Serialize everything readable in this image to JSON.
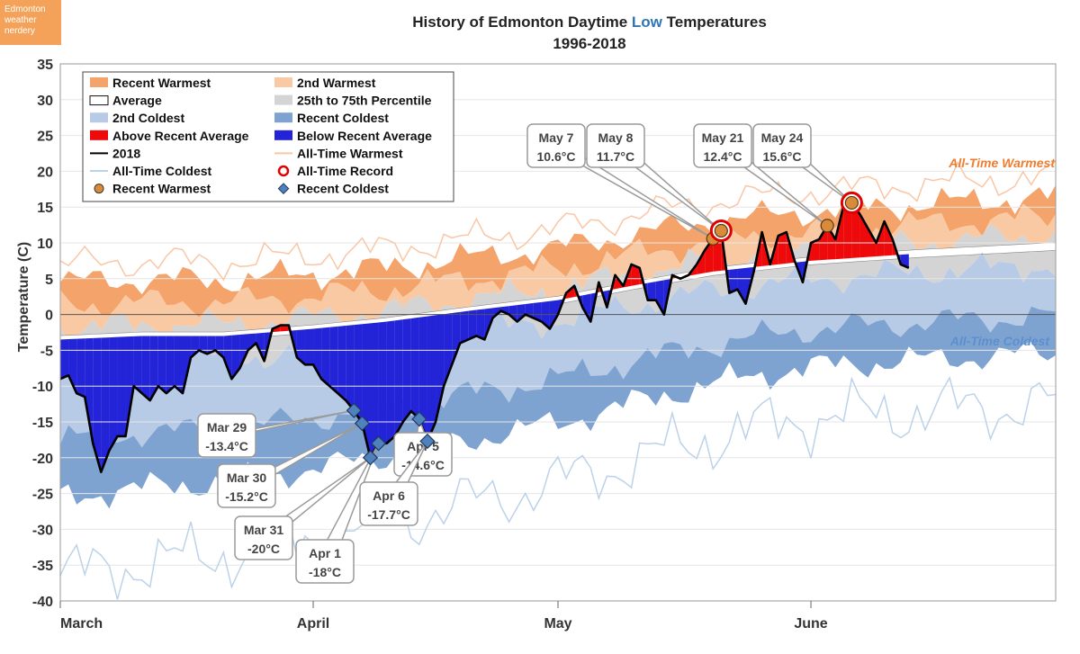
{
  "brand": {
    "line1": "Edmonton",
    "line2": "weather",
    "line3": "nerdery"
  },
  "chart_data": {
    "type": "area",
    "title_part1": "History of Edmonton Daytime ",
    "title_highlight": "Low",
    "title_part2": " Temperatures",
    "subtitle": "1996-2018",
    "ylabel": "Temperature (C)",
    "ylim": [
      -40,
      35
    ],
    "yticks": [
      35,
      30,
      25,
      20,
      15,
      10,
      5,
      0,
      -5,
      -10,
      -15,
      -20,
      -25,
      -30,
      -35,
      -40
    ],
    "xlim": [
      0,
      122
    ],
    "month_ticks": [
      {
        "label": "March",
        "day": 0
      },
      {
        "label": "April",
        "day": 31
      },
      {
        "label": "May",
        "day": 61
      },
      {
        "label": "June",
        "day": 92
      }
    ],
    "grid": true,
    "colors": {
      "warmest": "#f4a46a",
      "second_warmest": "#f9c9a3",
      "percentile": "#d4d4d4",
      "second_coldest": "#b7cbe6",
      "recent_coldest": "#7fa3d0",
      "above": "#ee0a0a",
      "below": "#2323d8",
      "line": "#000000",
      "alltime_warm": "#f9c6a6",
      "alltime_cold": "#bcd2ea",
      "highlight": "#2e75b6",
      "warm_label": "#ed7d31",
      "cold_label": "#5b8fcf",
      "record": "#e00000",
      "dot": "#d98b3a",
      "diamond": "#4f81bd"
    },
    "legend": [
      {
        "label": "Recent Warmest",
        "kind": "fill",
        "color": "#f4a46a"
      },
      {
        "label": "2nd Warmest",
        "kind": "fill",
        "color": "#f9c9a3"
      },
      {
        "label": "Average",
        "kind": "box",
        "color": "#ffffff"
      },
      {
        "label": "25th to 75th Percentile",
        "kind": "fill",
        "color": "#d4d4d4"
      },
      {
        "label": "2nd Coldest",
        "kind": "fill",
        "color": "#b7cbe6"
      },
      {
        "label": "Recent Coldest",
        "kind": "fill",
        "color": "#7fa3d0"
      },
      {
        "label": "Above Recent Average",
        "kind": "fill",
        "color": "#ee0a0a"
      },
      {
        "label": "Below Recent Average",
        "kind": "fill",
        "color": "#2323d8"
      },
      {
        "label": "2018",
        "kind": "line",
        "color": "#000000"
      },
      {
        "label": "All-Time Warmest",
        "kind": "line",
        "color": "#f9c6a6"
      },
      {
        "label": "All-Time Coldest",
        "kind": "line",
        "color": "#bcd2ea"
      },
      {
        "label": "All-Time Record",
        "kind": "ring",
        "color": "#e00000"
      },
      {
        "label": "Recent Warmest",
        "kind": "dot",
        "color": "#d98b3a"
      },
      {
        "label": "Recent Coldest",
        "kind": "diamond",
        "color": "#4f81bd"
      }
    ],
    "series_labels": {
      "warmest": "All-Time Warmest",
      "coldest": "All-Time Coldest"
    },
    "avg_knots": [
      [
        0,
        -3.5
      ],
      [
        10,
        -3
      ],
      [
        20,
        -3
      ],
      [
        31,
        -2
      ],
      [
        40,
        -1
      ],
      [
        50,
        0.5
      ],
      [
        61,
        2
      ],
      [
        70,
        4
      ],
      [
        80,
        6
      ],
      [
        92,
        7.5
      ],
      [
        105,
        8.5
      ],
      [
        122,
        9.5
      ]
    ],
    "temp_2018": [
      [
        0,
        -9
      ],
      [
        1,
        -8.5
      ],
      [
        2,
        -11
      ],
      [
        3,
        -11.5
      ],
      [
        4,
        -18
      ],
      [
        5,
        -22
      ],
      [
        6,
        -19
      ],
      [
        7,
        -17
      ],
      [
        8,
        -17
      ],
      [
        9,
        -10
      ],
      [
        10,
        -11
      ],
      [
        11,
        -12
      ],
      [
        12,
        -10
      ],
      [
        13,
        -11
      ],
      [
        14,
        -10
      ],
      [
        15,
        -11
      ],
      [
        16,
        -6
      ],
      [
        17,
        -5
      ],
      [
        18,
        -5.5
      ],
      [
        19,
        -5
      ],
      [
        20,
        -6
      ],
      [
        21,
        -9
      ],
      [
        22,
        -7.5
      ],
      [
        23,
        -5
      ],
      [
        24,
        -4
      ],
      [
        25,
        -6.5
      ],
      [
        26,
        -2
      ],
      [
        27,
        -1.5
      ],
      [
        28,
        -1.5
      ],
      [
        29,
        -6
      ],
      [
        30,
        -7
      ],
      [
        31,
        -7
      ],
      [
        32,
        -9
      ],
      [
        33,
        -10
      ],
      [
        34,
        -11
      ],
      [
        35,
        -12
      ],
      [
        36,
        -13.4
      ],
      [
        37,
        -15.2
      ],
      [
        38,
        -20
      ],
      [
        39,
        -18
      ],
      [
        40,
        -18
      ],
      [
        41,
        -17
      ],
      [
        42,
        -15
      ],
      [
        43,
        -13.5
      ],
      [
        44,
        -14.6
      ],
      [
        45,
        -17.7
      ],
      [
        46,
        -15
      ],
      [
        47,
        -10
      ],
      [
        48,
        -7
      ],
      [
        49,
        -4
      ],
      [
        50,
        -3.5
      ],
      [
        51,
        -3
      ],
      [
        52,
        -3.5
      ],
      [
        53,
        -0.5
      ],
      [
        54,
        0.5
      ],
      [
        55,
        0
      ],
      [
        56,
        -1
      ],
      [
        57,
        0
      ],
      [
        58,
        -0.5
      ],
      [
        59,
        -1
      ],
      [
        60,
        -2
      ],
      [
        61,
        0
      ],
      [
        62,
        3
      ],
      [
        63,
        4
      ],
      [
        64,
        1
      ],
      [
        65,
        -1
      ],
      [
        66,
        4.5
      ],
      [
        67,
        1
      ],
      [
        68,
        5.5
      ],
      [
        69,
        4
      ],
      [
        70,
        7
      ],
      [
        71,
        6.5
      ],
      [
        72,
        2
      ],
      [
        73,
        2
      ],
      [
        74,
        0
      ],
      [
        75,
        5.5
      ],
      [
        76,
        5
      ],
      [
        77,
        5.5
      ],
      [
        78,
        7
      ],
      [
        79,
        9
      ],
      [
        80,
        10.6
      ],
      [
        81,
        11.7
      ],
      [
        82,
        3
      ],
      [
        83,
        3.5
      ],
      [
        84,
        1.5
      ],
      [
        85,
        6
      ],
      [
        86,
        11.5
      ],
      [
        87,
        7
      ],
      [
        88,
        11
      ],
      [
        89,
        11.5
      ],
      [
        90,
        7.5
      ],
      [
        91,
        4.5
      ],
      [
        92,
        10
      ],
      [
        93,
        10.5
      ],
      [
        94,
        12.4
      ],
      [
        95,
        10.5
      ],
      [
        96,
        15.2
      ],
      [
        97,
        15.6
      ],
      [
        98,
        14
      ],
      [
        99,
        12
      ],
      [
        100,
        10
      ],
      [
        101,
        13
      ],
      [
        102,
        10.5
      ],
      [
        103,
        7
      ],
      [
        104,
        6.5
      ]
    ],
    "callouts": [
      {
        "label": "Mar 29",
        "value": "-13.4°C",
        "day": 36,
        "temp": -13.4,
        "kind": "diamond"
      },
      {
        "label": "Mar 30",
        "value": "-15.2°C",
        "day": 37,
        "temp": -15.2,
        "kind": "diamond"
      },
      {
        "label": "Mar 31",
        "value": "-20°C",
        "day": 38,
        "temp": -20,
        "kind": "diamond"
      },
      {
        "label": "Apr 1",
        "value": "-18°C",
        "day": 39,
        "temp": -18,
        "kind": "diamond"
      },
      {
        "label": "Apr 5",
        "value": "-14.6°C",
        "day": 44,
        "temp": -14.6,
        "kind": "diamond"
      },
      {
        "label": "Apr 6",
        "value": "-17.7°C",
        "day": 45,
        "temp": -17.7,
        "kind": "diamond"
      },
      {
        "label": "May 7",
        "value": "10.6°C",
        "day": 80,
        "temp": 10.6,
        "kind": "dot"
      },
      {
        "label": "May 8",
        "value": "11.7°C",
        "day": 81,
        "temp": 11.7,
        "kind": "dot",
        "record": true
      },
      {
        "label": "May 21",
        "value": "12.4°C",
        "day": 94,
        "temp": 12.4,
        "kind": "dot"
      },
      {
        "label": "May 24",
        "value": "15.6°C",
        "day": 97,
        "temp": 15.6,
        "kind": "dot",
        "record": true
      }
    ]
  }
}
